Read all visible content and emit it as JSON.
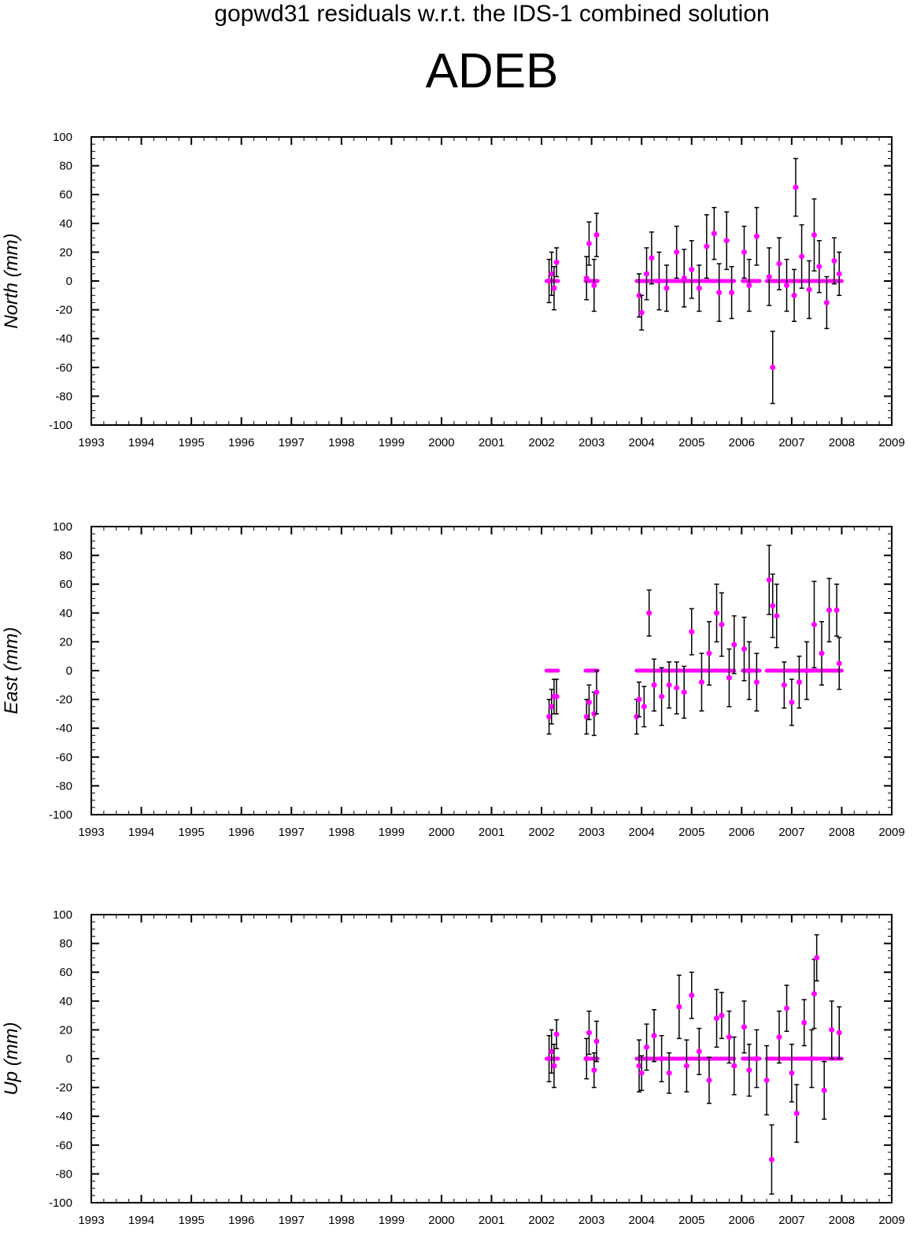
{
  "header": {
    "suptitle": "gopwd31 residuals w.r.t. the IDS-1 combined solution",
    "station": "ADEB"
  },
  "colors": {
    "point": "#ff00ff",
    "errorbar": "#000000",
    "axes": "#000000"
  },
  "chart_data": [
    {
      "type": "scatter",
      "ylabel": "North (mm)",
      "xlim": [
        1993,
        2009
      ],
      "ylim": [
        -100,
        100
      ],
      "x_ticks": [
        "1993",
        "1994",
        "1995",
        "1996",
        "1997",
        "1998",
        "1999",
        "2000",
        "2001",
        "2002",
        "2003",
        "2004",
        "2005",
        "2006",
        "2007",
        "2008",
        "2009"
      ],
      "y_ticks": [
        "-100",
        "-80",
        "-60",
        "-40",
        "-20",
        "0",
        "20",
        "40",
        "60",
        "80",
        "100"
      ],
      "x": [
        2002.15,
        2002.2,
        2002.25,
        2002.3,
        2002.9,
        2002.95,
        2003.05,
        2003.1,
        2003.95,
        2004.0,
        2004.1,
        2004.2,
        2004.35,
        2004.5,
        2004.7,
        2004.85,
        2005.0,
        2005.15,
        2005.3,
        2005.45,
        2005.55,
        2005.7,
        2005.8,
        2006.05,
        2006.15,
        2006.3,
        2006.55,
        2006.62,
        2006.75,
        2006.9,
        2007.05,
        2007.08,
        2007.2,
        2007.35,
        2007.45,
        2007.55,
        2007.7,
        2007.85,
        2007.95
      ],
      "y": [
        0,
        5,
        -5,
        13,
        2,
        26,
        -3,
        32,
        -10,
        -22,
        5,
        16,
        0,
        -5,
        20,
        2,
        8,
        -5,
        24,
        33,
        -8,
        28,
        -8,
        20,
        -3,
        31,
        3,
        -60,
        12,
        -3,
        -10,
        65,
        17,
        -6,
        32,
        10,
        -15,
        14,
        5
      ],
      "err": [
        15,
        15,
        15,
        10,
        15,
        15,
        18,
        15,
        15,
        12,
        18,
        18,
        20,
        16,
        18,
        20,
        20,
        16,
        22,
        18,
        20,
        20,
        18,
        18,
        18,
        20,
        20,
        25,
        18,
        18,
        18,
        20,
        22,
        20,
        25,
        18,
        18,
        16,
        15
      ],
      "baseline": {
        "value": 0,
        "ranges": [
          [
            2002.1,
            2002.33
          ],
          [
            2002.88,
            2003.12
          ],
          [
            2003.9,
            2005.85
          ],
          [
            2006.02,
            2006.36
          ],
          [
            2006.5,
            2008.0
          ]
        ]
      }
    },
    {
      "type": "scatter",
      "ylabel": "East (mm)",
      "xlim": [
        1993,
        2009
      ],
      "ylim": [
        -100,
        100
      ],
      "x_ticks": [
        "1993",
        "1994",
        "1995",
        "1996",
        "1997",
        "1998",
        "1999",
        "2000",
        "2001",
        "2002",
        "2003",
        "2004",
        "2005",
        "2006",
        "2007",
        "2008",
        "2009"
      ],
      "y_ticks": [
        "-100",
        "-80",
        "-60",
        "-40",
        "-20",
        "0",
        "20",
        "40",
        "60",
        "80",
        "100"
      ],
      "x": [
        2002.15,
        2002.2,
        2002.25,
        2002.3,
        2002.9,
        2002.95,
        2003.05,
        2003.1,
        2003.9,
        2003.95,
        2004.05,
        2004.15,
        2004.25,
        2004.4,
        2004.55,
        2004.7,
        2004.85,
        2005.0,
        2005.2,
        2005.35,
        2005.5,
        2005.6,
        2005.75,
        2005.85,
        2006.05,
        2006.15,
        2006.3,
        2006.55,
        2006.62,
        2006.7,
        2006.85,
        2007.0,
        2007.15,
        2007.3,
        2007.45,
        2007.6,
        2007.75,
        2007.9,
        2007.95
      ],
      "y": [
        -32,
        -25,
        -18,
        -18,
        -32,
        -22,
        -30,
        -15,
        -32,
        -20,
        -25,
        40,
        -10,
        -18,
        -10,
        -12,
        -15,
        27,
        -8,
        12,
        40,
        32,
        -5,
        18,
        15,
        0,
        -8,
        63,
        45,
        38,
        -10,
        -22,
        -8,
        0,
        32,
        12,
        42,
        42,
        5
      ],
      "err": [
        12,
        12,
        12,
        12,
        12,
        12,
        15,
        15,
        12,
        12,
        14,
        16,
        18,
        20,
        16,
        18,
        18,
        16,
        20,
        22,
        20,
        22,
        20,
        20,
        22,
        20,
        20,
        24,
        22,
        22,
        16,
        16,
        18,
        20,
        30,
        22,
        22,
        18,
        18
      ],
      "baseline": {
        "value": 0,
        "ranges": [
          [
            2002.1,
            2002.33
          ],
          [
            2002.88,
            2003.12
          ],
          [
            2003.9,
            2005.85
          ],
          [
            2006.02,
            2006.36
          ],
          [
            2006.5,
            2008.0
          ]
        ]
      }
    },
    {
      "type": "scatter",
      "ylabel": "Up (mm)",
      "xlim": [
        1993,
        2009
      ],
      "ylim": [
        -100,
        100
      ],
      "x_ticks": [
        "1993",
        "1994",
        "1995",
        "1996",
        "1997",
        "1998",
        "1999",
        "2000",
        "2001",
        "2002",
        "2003",
        "2004",
        "2005",
        "2006",
        "2007",
        "2008",
        "2009"
      ],
      "y_ticks": [
        "-100",
        "-80",
        "-60",
        "-40",
        "-20",
        "0",
        "20",
        "40",
        "60",
        "80",
        "100"
      ],
      "x": [
        2002.15,
        2002.2,
        2002.25,
        2002.3,
        2002.9,
        2002.95,
        2003.05,
        2003.1,
        2003.95,
        2004.0,
        2004.1,
        2004.25,
        2004.4,
        2004.55,
        2004.75,
        2004.9,
        2005.0,
        2005.15,
        2005.35,
        2005.5,
        2005.6,
        2005.75,
        2005.85,
        2006.05,
        2006.15,
        2006.3,
        2006.5,
        2006.6,
        2006.75,
        2006.9,
        2007.0,
        2007.1,
        2007.25,
        2007.4,
        2007.45,
        2007.5,
        2007.65,
        2007.8,
        2007.95
      ],
      "y": [
        0,
        5,
        -5,
        17,
        0,
        18,
        -8,
        12,
        -5,
        -10,
        8,
        16,
        0,
        -10,
        36,
        -5,
        44,
        5,
        -15,
        28,
        30,
        15,
        -5,
        22,
        -8,
        0,
        -15,
        -70,
        15,
        35,
        -10,
        -38,
        25,
        0,
        45,
        70,
        -22,
        20,
        18
      ],
      "err": [
        16,
        15,
        15,
        10,
        14,
        15,
        12,
        14,
        18,
        12,
        16,
        18,
        16,
        14,
        22,
        18,
        16,
        16,
        16,
        20,
        16,
        18,
        20,
        18,
        18,
        20,
        24,
        24,
        18,
        16,
        20,
        20,
        16,
        20,
        24,
        16,
        20,
        20,
        18
      ],
      "baseline": {
        "value": 0,
        "ranges": [
          [
            2002.1,
            2002.33
          ],
          [
            2002.88,
            2003.12
          ],
          [
            2003.9,
            2005.85
          ],
          [
            2006.02,
            2006.36
          ],
          [
            2006.5,
            2008.0
          ]
        ]
      }
    }
  ]
}
